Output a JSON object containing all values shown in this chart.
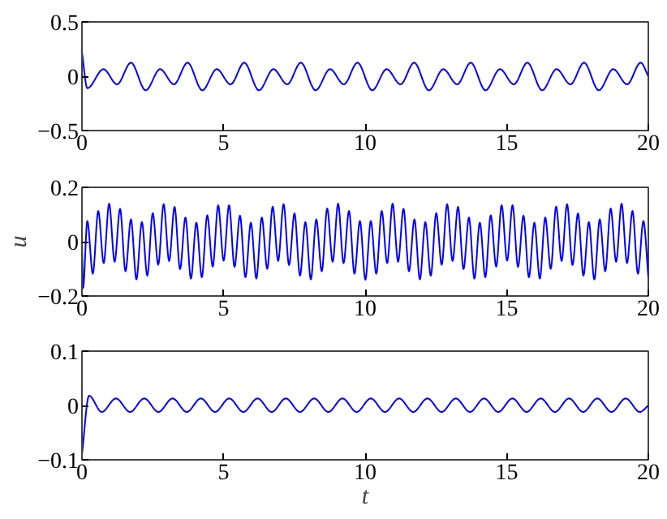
{
  "chart_data": [
    {
      "type": "line",
      "xlim": [
        0,
        20
      ],
      "xticks": [
        0,
        5,
        10,
        15,
        20
      ],
      "ylim": [
        -0.5,
        0.5
      ],
      "yticks": [
        -0.5,
        0,
        0.5
      ],
      "x": [
        0,
        0.19,
        0.76,
        1.24,
        1.73,
        2.25,
        2.76,
        3.25,
        3.73,
        4.25,
        4.76,
        5.25,
        5.73,
        6.25,
        6.76,
        7.25,
        7.73,
        8.25,
        8.76,
        9.25,
        9.73,
        10.25,
        10.76,
        11.25,
        11.73,
        12.25,
        12.76,
        13.25,
        13.73,
        14.25,
        14.76,
        15.25,
        15.73,
        16.25,
        16.76,
        17.25,
        17.73,
        18.25,
        18.76,
        19.25,
        19.73,
        20
      ],
      "series": [
        {
          "color": "#0000ff",
          "values": [
            0.22,
            -0.11,
            0.065,
            -0.075,
            0.125,
            -0.13,
            0.065,
            -0.075,
            0.125,
            -0.13,
            0.065,
            -0.075,
            0.125,
            -0.13,
            0.065,
            -0.075,
            0.125,
            -0.13,
            0.065,
            -0.075,
            0.125,
            -0.13,
            0.065,
            -0.075,
            0.125,
            -0.13,
            0.065,
            -0.075,
            0.125,
            -0.13,
            0.065,
            -0.075,
            0.125,
            -0.13,
            0.065,
            -0.075,
            0.125,
            -0.13,
            0.065,
            -0.075,
            0.125,
            0.0
          ]
        }
      ]
    },
    {
      "type": "line",
      "ylabel": "u",
      "xlim": [
        0,
        20
      ],
      "xticks": [
        0,
        5,
        10,
        15,
        20
      ],
      "ylim": [
        -0.2,
        0.2
      ],
      "yticks": [
        -0.2,
        0,
        0.2
      ],
      "x": [
        0,
        0.04,
        0.19,
        0.383,
        0.575,
        0.768,
        0.96,
        1.153,
        1.345,
        1.538,
        1.73,
        1.923,
        2.115,
        2.308,
        2.5,
        2.693,
        2.885,
        3.078,
        3.27,
        3.463,
        3.655,
        3.848,
        4.04,
        4.233,
        4.425,
        4.618,
        4.81,
        5.003,
        5.195,
        5.388,
        5.58,
        5.773,
        5.965,
        6.158,
        6.35,
        6.543,
        6.735,
        6.928,
        7.12,
        7.313,
        7.505,
        7.698,
        7.89,
        8.083,
        8.275,
        8.468,
        8.66,
        8.853,
        9.045,
        9.238,
        9.43,
        9.623,
        9.815,
        10.008,
        10.2,
        10.393,
        10.585,
        10.778,
        10.97,
        11.163,
        11.355,
        11.548,
        11.74,
        11.933,
        12.125,
        12.318,
        12.51,
        12.703,
        12.895,
        13.088,
        13.28,
        13.473,
        13.665,
        13.858,
        14.05,
        14.243,
        14.435,
        14.628,
        14.82,
        15.013,
        15.205,
        15.398,
        15.59,
        15.783,
        15.975,
        16.168,
        16.36,
        16.553,
        16.745,
        16.938,
        17.13,
        17.323,
        17.515,
        17.708,
        17.9,
        18.093,
        18.285,
        18.478,
        18.67,
        18.863,
        19.055,
        19.248,
        19.44,
        19.633,
        19.825,
        20
      ],
      "series": [
        {
          "color": "#0000ff",
          "values": [
            0.0,
            -0.17,
            0.076,
            -0.118,
            0.113,
            -0.079,
            0.14,
            -0.074,
            0.121,
            -0.109,
            0.082,
            -0.139,
            0.072,
            -0.125,
            0.105,
            -0.085,
            0.138,
            -0.071,
            0.128,
            -0.101,
            0.089,
            -0.136,
            0.07,
            -0.131,
            0.097,
            -0.092,
            0.134,
            -0.07,
            0.134,
            -0.093,
            0.096,
            -0.131,
            0.07,
            -0.136,
            0.089,
            -0.1,
            0.129,
            -0.071,
            0.138,
            -0.086,
            0.104,
            -0.125,
            0.072,
            -0.139,
            0.082,
            -0.109,
            0.122,
            -0.074,
            0.14,
            -0.079,
            0.113,
            -0.118,
            0.076,
            -0.14,
            0.076,
            -0.118,
            0.113,
            -0.079,
            0.14,
            -0.074,
            0.121,
            -0.109,
            0.082,
            -0.139,
            0.072,
            -0.125,
            0.105,
            -0.085,
            0.138,
            -0.071,
            0.128,
            -0.101,
            0.089,
            -0.136,
            0.07,
            -0.131,
            0.097,
            -0.092,
            0.134,
            -0.07,
            0.134,
            -0.093,
            0.096,
            -0.131,
            0.07,
            -0.136,
            0.089,
            -0.1,
            0.129,
            -0.071,
            0.138,
            -0.086,
            0.104,
            -0.125,
            0.072,
            -0.139,
            0.082,
            -0.109,
            0.122,
            -0.074,
            0.14,
            -0.079,
            0.113,
            -0.118,
            0.076,
            -0.13
          ]
        }
      ]
    },
    {
      "type": "line",
      "xlabel": "t",
      "xlim": [
        0,
        20
      ],
      "xticks": [
        0,
        5,
        10,
        15,
        20
      ],
      "ylim": [
        -0.1,
        0.1
      ],
      "yticks": [
        -0.1,
        0,
        0.1
      ],
      "x": [
        0,
        0.25,
        0.7,
        1.2,
        1.7,
        2.2,
        2.7,
        3.2,
        3.7,
        4.2,
        4.7,
        5.2,
        5.7,
        6.2,
        6.7,
        7.2,
        7.7,
        8.2,
        8.7,
        9.2,
        9.7,
        10.2,
        10.7,
        11.2,
        11.7,
        12.2,
        12.7,
        13.2,
        13.7,
        14.2,
        14.7,
        15.2,
        15.7,
        16.2,
        16.7,
        17.2,
        17.7,
        18.2,
        18.7,
        19.2,
        19.7,
        20
      ],
      "series": [
        {
          "color": "#0000ff",
          "values": [
            -0.09,
            0.018,
            -0.012,
            0.013,
            -0.012,
            0.013,
            -0.012,
            0.013,
            -0.012,
            0.013,
            -0.012,
            0.013,
            -0.012,
            0.013,
            -0.012,
            0.013,
            -0.012,
            0.013,
            -0.012,
            0.013,
            -0.012,
            0.013,
            -0.012,
            0.013,
            -0.012,
            0.013,
            -0.012,
            0.013,
            -0.012,
            0.013,
            -0.012,
            0.013,
            -0.012,
            0.013,
            -0.012,
            0.013,
            -0.012,
            0.013,
            -0.012,
            0.013,
            -0.012,
            0.0
          ]
        }
      ]
    }
  ]
}
